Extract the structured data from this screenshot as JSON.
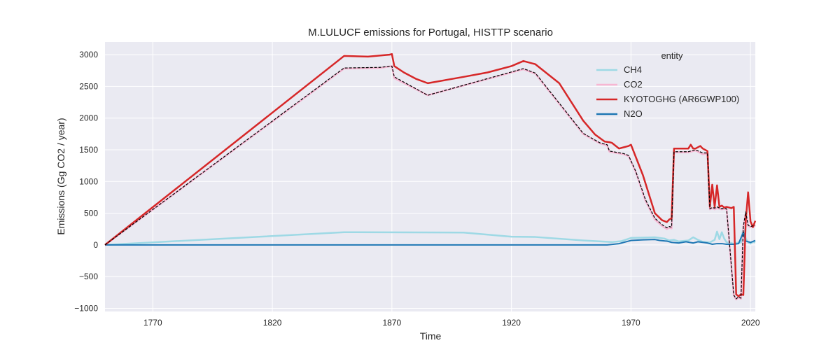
{
  "chart_data": {
    "type": "line",
    "title": "M.LULUCF emissions for Portugal, HISTTP scenario",
    "xlabel": "Time",
    "ylabel": "Emissions (Gg CO2 / year)",
    "xlim": [
      1750,
      2022
    ],
    "ylim": [
      -1050,
      3200
    ],
    "xticks": [
      1770,
      1820,
      1870,
      1920,
      1970,
      2020
    ],
    "yticks": [
      -1000,
      -500,
      0,
      500,
      1000,
      1500,
      2000,
      2500,
      3000
    ],
    "grid": true,
    "background": "#eaeaf2",
    "legend": {
      "title": "entity",
      "placement": "top-right",
      "entries": [
        "CH4",
        "CO2",
        "KYOTOGHG (AR6GWP100)",
        "N2O"
      ]
    },
    "series": [
      {
        "name": "CH4",
        "color": "#9ed9e5",
        "x": [
          1750,
          1850,
          1900,
          1920,
          1930,
          1950,
          1962,
          1966,
          1970,
          1980,
          1984,
          1986,
          1988,
          1990,
          1994,
          1996,
          1998,
          2000,
          2003,
          2005,
          2006,
          2007,
          2008,
          2009,
          2010,
          2012,
          2013,
          2014,
          2016,
          2017,
          2018,
          2019,
          2020,
          2021,
          2022
        ],
        "values": [
          0,
          200,
          195,
          130,
          125,
          70,
          45,
          60,
          110,
          120,
          100,
          70,
          80,
          55,
          70,
          120,
          80,
          50,
          40,
          80,
          210,
          90,
          200,
          100,
          40,
          30,
          10,
          30,
          40,
          270,
          100,
          40,
          20,
          50,
          40
        ]
      },
      {
        "name": "CO2",
        "color": "#f7b6d2",
        "x": [
          1750,
          1850,
          1865,
          1870,
          1871,
          1885,
          1925,
          1930,
          1950,
          1957,
          1960,
          1961,
          1967,
          1969,
          1972,
          1976,
          1980,
          1983,
          1985,
          1986,
          1987,
          1988,
          1994,
          1997,
          2000,
          2002,
          2003,
          2004,
          2005,
          2006,
          2007,
          2008,
          2009,
          2010,
          2013,
          2014,
          2015,
          2016,
          2017,
          2018,
          2019,
          2020,
          2021,
          2022
        ],
        "values": [
          0,
          2780,
          2790,
          2820,
          2630,
          2360,
          2770,
          2700,
          1750,
          1600,
          1570,
          1470,
          1430,
          1400,
          1150,
          700,
          400,
          300,
          250,
          270,
          260,
          1460,
          1460,
          1490,
          1430,
          1440,
          560,
          580,
          560,
          580,
          570,
          560,
          570,
          560,
          -800,
          -860,
          -830,
          -850,
          280,
          500,
          300,
          280,
          290,
          300
        ]
      },
      {
        "name": "KYOTOGHG (AR6GWP100)",
        "color": "#d62728",
        "x": [
          1750,
          1850,
          1860,
          1869,
          1870,
          1871,
          1875,
          1880,
          1885,
          1900,
          1910,
          1920,
          1925,
          1930,
          1940,
          1950,
          1955,
          1959,
          1961,
          1962,
          1965,
          1969,
          1970,
          1975,
          1980,
          1983,
          1985,
          1986,
          1987,
          1988,
          1994,
          1995,
          1996,
          1997,
          1999,
          2000,
          2002,
          2003,
          2004,
          2005,
          2006,
          2007,
          2008,
          2009,
          2010,
          2012,
          2013,
          2014,
          2015,
          2016,
          2017,
          2018,
          2019,
          2020,
          2021,
          2022
        ],
        "values": [
          0,
          2980,
          2970,
          3000,
          3010,
          2820,
          2720,
          2620,
          2550,
          2650,
          2720,
          2820,
          2900,
          2850,
          2550,
          1960,
          1740,
          1630,
          1620,
          1610,
          1520,
          1560,
          1580,
          1100,
          500,
          390,
          360,
          400,
          420,
          1520,
          1520,
          1580,
          1520,
          1520,
          1560,
          1520,
          1480,
          600,
          950,
          600,
          940,
          600,
          620,
          590,
          600,
          580,
          600,
          -780,
          -810,
          -780,
          -790,
          380,
          830,
          370,
          280,
          380
        ]
      },
      {
        "name": "N2O",
        "color": "#1f77b4",
        "x": [
          1750,
          1960,
          1965,
          1970,
          1975,
          1980,
          1982,
          1985,
          1987,
          1990,
          1993,
          1996,
          1998,
          2000,
          2002,
          2004,
          2006,
          2008,
          2010,
          2013,
          2015,
          2017,
          2018,
          2020,
          2022
        ],
        "values": [
          0,
          0,
          20,
          70,
          80,
          85,
          70,
          60,
          40,
          30,
          50,
          30,
          50,
          40,
          30,
          10,
          20,
          20,
          10,
          10,
          20,
          200,
          60,
          40,
          70
        ]
      },
      {
        "name": "",
        "color": "#000000",
        "dashed": true,
        "x": [
          1750,
          1850,
          1865,
          1870,
          1871,
          1885,
          1925,
          1930,
          1950,
          1957,
          1960,
          1961,
          1967,
          1969,
          1972,
          1976,
          1980,
          1983,
          1985,
          1986,
          1987,
          1988,
          1994,
          1997,
          2000,
          2002,
          2003,
          2004,
          2005,
          2006,
          2007,
          2008,
          2009,
          2010,
          2013,
          2014,
          2015,
          2016,
          2017,
          2018,
          2019,
          2020,
          2021,
          2022
        ],
        "values": [
          0,
          2790,
          2800,
          2820,
          2650,
          2360,
          2780,
          2710,
          1760,
          1610,
          1580,
          1480,
          1440,
          1410,
          1160,
          720,
          420,
          320,
          270,
          290,
          280,
          1470,
          1470,
          1500,
          1450,
          1450,
          570,
          590,
          580,
          600,
          580,
          570,
          580,
          570,
          -790,
          -850,
          -820,
          -840,
          290,
          520,
          310,
          290,
          300,
          310
        ]
      }
    ]
  }
}
